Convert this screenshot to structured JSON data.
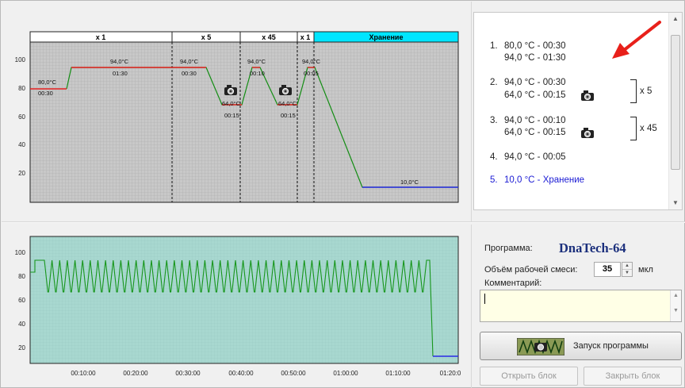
{
  "top_chart": {
    "header_segments": [
      {
        "label": "x 1",
        "color": "#ffffff"
      },
      {
        "label": "x 5",
        "color": "#ffffff"
      },
      {
        "label": "x 45",
        "color": "#ffffff"
      },
      {
        "label": "x 1",
        "color": "#ffffff"
      },
      {
        "label": "Хранение",
        "color": "#00e5ff"
      }
    ],
    "y_ticks": [
      "100",
      "80",
      "60",
      "40",
      "20"
    ],
    "labels": [
      {
        "temp": "80,0°C",
        "time": "00:30"
      },
      {
        "temp": "94,0°C",
        "time": "01:30"
      },
      {
        "temp": "94,0°C",
        "time": "00:30"
      },
      {
        "temp": "64,0°C",
        "time": "00:15"
      },
      {
        "temp": "94,0°C",
        "time": "00:10"
      },
      {
        "temp": "64,0°C",
        "time": "00:15"
      },
      {
        "temp": "94,0°C",
        "time": "00:05"
      },
      {
        "temp": "10,0°C",
        "time": ""
      }
    ],
    "colors": {
      "plot_bg": "#c8c8c8",
      "grid": "#a6a6a6",
      "line_green": "#138d13",
      "line_red": "#e52121",
      "line_blue": "#2a2ae6",
      "storage": "#00e5ff"
    }
  },
  "program_list": {
    "steps": [
      {
        "num": "1.",
        "lines": [
          "80,0 °C  -  00:30",
          "94,0 °C  -  01:30"
        ]
      },
      {
        "num": "2.",
        "lines": [
          "94,0 °C  -  00:30",
          "64,0 °C  -  00:15"
        ]
      },
      {
        "num": "3.",
        "lines": [
          "94,0 °C  -  00:10",
          "64,0 °C  -  00:15"
        ]
      },
      {
        "num": "4.",
        "lines": [
          "94,0 °C  -  00:05"
        ]
      },
      {
        "num": "5.",
        "lines": [
          "10,0 °C  -  Хранение"
        ]
      }
    ],
    "repeats": [
      "x 5",
      "x 45"
    ],
    "storage_color": "#1a1ad4",
    "arrow_color": "#e8201a"
  },
  "bottom_chart": {
    "y_ticks": [
      "100",
      "80",
      "60",
      "40",
      "20"
    ],
    "x_ticks": [
      "00:10:00",
      "00:20:00",
      "00:30:00",
      "00:40:00",
      "00:50:00",
      "01:00:00",
      "01:10:00",
      "01:20:0"
    ],
    "colors": {
      "plot_bg": "#a8d8d0",
      "line": "#17961b",
      "line_end": "#2a2ae6"
    }
  },
  "form": {
    "program_label": "Программа:",
    "program_name": "DnaTech-64",
    "volume_label": "Объём рабочей смеси:",
    "volume_value": "35",
    "volume_unit": "мкл",
    "comment_label": "Комментарий:",
    "run_button": "Запуск программы",
    "open_button": "Открыть блок",
    "close_button": "Закрыть блок"
  }
}
